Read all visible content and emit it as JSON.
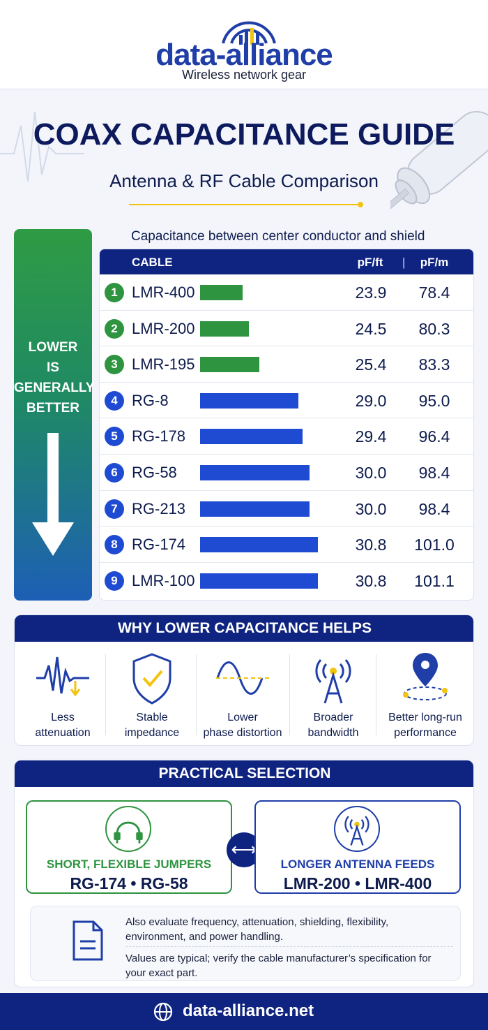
{
  "brand": {
    "name": "data-alliance",
    "tagline": "Wireless network gear",
    "url": "data-alliance.net",
    "colors": {
      "navy": "#0f2480",
      "blue": "#1f3ea8",
      "green": "#2e9440",
      "bar_blue": "#1e4bd2",
      "accent": "#f2c40f"
    }
  },
  "title": "COAX CAPACITANCE GUIDE",
  "subtitle": "Antenna & RF Cable Comparison",
  "sidebar": {
    "lines": [
      "LOWER",
      "IS",
      "GENERALLY",
      "BETTER"
    ]
  },
  "chart_data": {
    "type": "table",
    "title": "Capacitance between center conductor and shield",
    "columns": [
      "CABLE",
      "pF/ft",
      "pF/m"
    ],
    "rows": [
      {
        "rank": "1",
        "cable": "LMR-400",
        "pf_ft": "23.9",
        "pf_m": "78.4",
        "group": "green"
      },
      {
        "rank": "2",
        "cable": "LMR-200",
        "pf_ft": "24.5",
        "pf_m": "80.3",
        "group": "green"
      },
      {
        "rank": "3",
        "cable": "LMR-195",
        "pf_ft": "25.4",
        "pf_m": "83.3",
        "group": "green"
      },
      {
        "rank": "4",
        "cable": "RG-8",
        "pf_ft": "29.0",
        "pf_m": "95.0",
        "group": "blue"
      },
      {
        "rank": "5",
        "cable": "RG-178",
        "pf_ft": "29.4",
        "pf_m": "96.4",
        "group": "blue"
      },
      {
        "rank": "6",
        "cable": "RG-58",
        "pf_ft": "30.0",
        "pf_m": "98.4",
        "group": "blue"
      },
      {
        "rank": "7",
        "cable": "RG-213",
        "pf_ft": "30.0",
        "pf_m": "98.4",
        "group": "blue"
      },
      {
        "rank": "8",
        "cable": "RG-174",
        "pf_ft": "30.8",
        "pf_m": "101.0",
        "group": "blue"
      },
      {
        "rank": "9",
        "cable": "LMR-100",
        "pf_ft": "30.8",
        "pf_m": "101.1",
        "group": "blue"
      }
    ]
  },
  "why": {
    "heading": "WHY LOWER CAPACITANCE HELPS",
    "items": [
      {
        "line1": "Less",
        "line2": "attenuation",
        "icon": "waveform-icon"
      },
      {
        "line1": "Stable",
        "line2": "impedance",
        "icon": "shield-check-icon"
      },
      {
        "line1": "Lower",
        "line2": "phase distortion",
        "icon": "sine-wave-icon"
      },
      {
        "line1": "Broader",
        "line2": "bandwidth",
        "icon": "antenna-tower-icon"
      },
      {
        "line1": "Better long-run",
        "line2": "performance",
        "icon": "location-pin-icon"
      }
    ]
  },
  "practical": {
    "heading": "PRACTICAL SELECTION",
    "left": {
      "title": "SHORT, FLEXIBLE JUMPERS",
      "items": "RG-174  •  RG-58",
      "color": "#2e9440"
    },
    "right": {
      "title": "LONGER ANTENNA FEEDS",
      "items": "LMR-200  •  LMR-400",
      "color": "#1f3ea8"
    },
    "swap_symbol": "⟷",
    "note1": "Also evaluate frequency, attenuation, shielding, flexibility, environment, and power handling.",
    "note2": "Values are typical; verify the cable manufacturer’s specification for your exact part."
  }
}
